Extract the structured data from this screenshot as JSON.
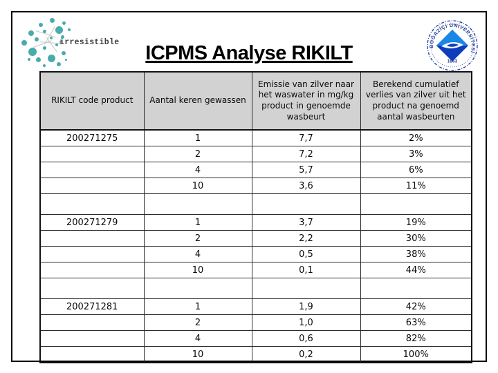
{
  "slide": {
    "title": "ICPMS Analyse RIKILT"
  },
  "logos": {
    "irresistible": {
      "text": "irresistible",
      "dot_color": "#4aabab",
      "text_color": "#3f3f3f"
    },
    "university": {
      "arc_text": "BOĞAZİÇİ ÜNİVERSİTESİ",
      "year": "1863",
      "navy": "#23409a",
      "blue_light": "#1787e8",
      "blue_dark": "#0d3dbb"
    }
  },
  "table": {
    "headers": [
      "RIKILT code product",
      "Aantal keren gewassen",
      "Emissie van zilver naar het waswater in mg/kg product in genoemde wasbeurt",
      "Berekend cumulatief verlies van zilver uit het product na genoemd aantal wasbeurten"
    ],
    "rows": [
      {
        "spacer": false,
        "cells": [
          "200271275",
          "1",
          "7,7",
          "2%"
        ]
      },
      {
        "spacer": false,
        "cells": [
          "",
          "2",
          "7,2",
          "3%"
        ]
      },
      {
        "spacer": false,
        "cells": [
          "",
          "4",
          "5,7",
          "6%"
        ]
      },
      {
        "spacer": false,
        "cells": [
          "",
          "10",
          "3,6",
          "11%"
        ]
      },
      {
        "spacer": true,
        "cells": [
          "",
          "",
          "",
          ""
        ]
      },
      {
        "spacer": false,
        "cells": [
          "200271279",
          "1",
          "3,7",
          "19%"
        ]
      },
      {
        "spacer": false,
        "cells": [
          "",
          "2",
          "2,2",
          "30%"
        ]
      },
      {
        "spacer": false,
        "cells": [
          "",
          "4",
          "0,5",
          "38%"
        ]
      },
      {
        "spacer": false,
        "cells": [
          "",
          "10",
          "0,1",
          "44%"
        ]
      },
      {
        "spacer": true,
        "cells": [
          "",
          "",
          "",
          ""
        ]
      },
      {
        "spacer": false,
        "cells": [
          "200271281",
          "1",
          "1,9",
          "42%"
        ]
      },
      {
        "spacer": false,
        "cells": [
          "",
          "2",
          "1,0",
          "63%"
        ]
      },
      {
        "spacer": false,
        "cells": [
          "",
          "4",
          "0,6",
          "82%"
        ]
      },
      {
        "spacer": false,
        "cells": [
          "",
          "10",
          "0,2",
          "100%"
        ]
      }
    ]
  }
}
